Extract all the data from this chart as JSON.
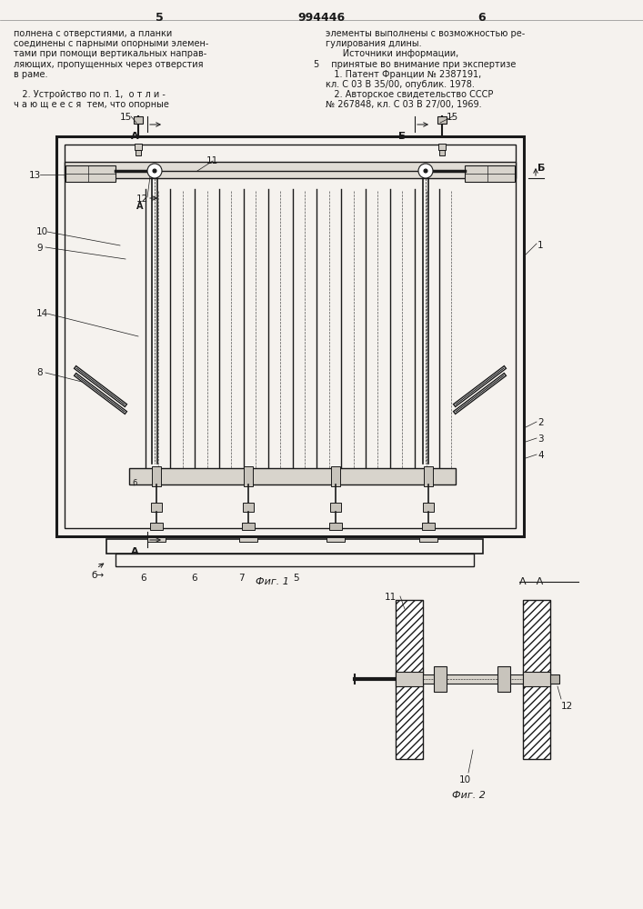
{
  "bg_color": "#f5f2ee",
  "line_color": "#1a1a1a",
  "page_width": 7.07,
  "page_height": 10.0,
  "text_left": [
    "полнена с отверстиями, а планки",
    "соединены с парными опорными элемен-",
    "тами при помощи вертикальных направ-",
    "ляющих, пропущенных через отверстия",
    "в раме.",
    "",
    "   2. Устройство по п. 1,  о т л и -",
    "ч а ю щ е е с я  тем, что опорные"
  ],
  "text_right": [
    "элементы выполнены с возможностью ре-",
    "гулирования длины.",
    "      Источники информации,",
    "  принятые во внимание при экспертизе",
    "   1. Патент Франции № 2387191,",
    "кл. С 03 В 35/00, опублик. 1978.",
    "   2. Авторское свидетельство СССР",
    "№ 267848, кл. С 03 В 27/00, 1969."
  ],
  "fig1_caption": "Фиг. 1",
  "fig2_caption": "Фиг. 2",
  "aa_label": "А - А"
}
